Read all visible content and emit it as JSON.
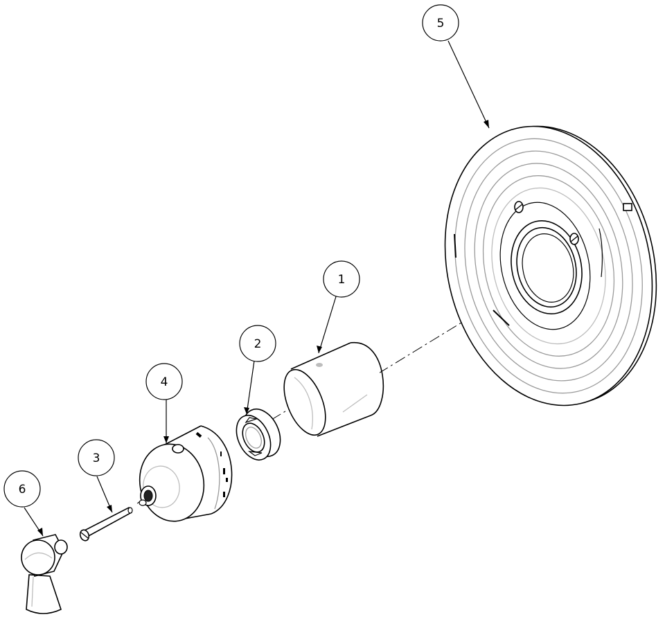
{
  "diagram": {
    "callouts": [
      {
        "id": "callout-1",
        "label": "1"
      },
      {
        "id": "callout-2",
        "label": "2"
      },
      {
        "id": "callout-3",
        "label": "3"
      },
      {
        "id": "callout-4",
        "label": "4"
      },
      {
        "id": "callout-5",
        "label": "5"
      },
      {
        "id": "callout-6",
        "label": "6"
      }
    ]
  }
}
